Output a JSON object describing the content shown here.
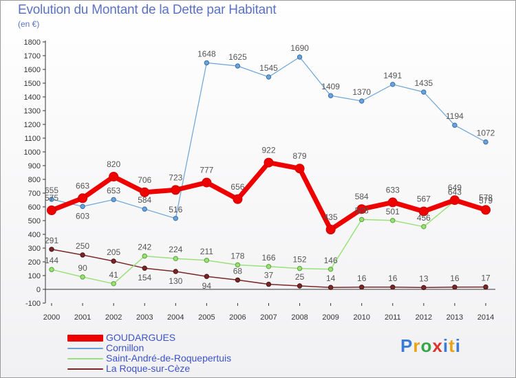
{
  "header": {
    "title": "Evolution du Montant de la Dette par Habitant",
    "unit": "(en €)"
  },
  "logo": {
    "text": "Proxiti"
  },
  "chart_data": {
    "type": "line",
    "title": "Evolution du Montant de la Dette par Habitant",
    "subtitle": "(en €)",
    "xlabel": "",
    "ylabel": "",
    "x": [
      2000,
      2001,
      2002,
      2003,
      2004,
      2005,
      2006,
      2007,
      2008,
      2009,
      2010,
      2011,
      2012,
      2013,
      2014
    ],
    "ylim": [
      -100,
      1800
    ],
    "yticks": [
      -100,
      0,
      100,
      200,
      300,
      400,
      500,
      600,
      700,
      800,
      900,
      1000,
      1100,
      1200,
      1300,
      1400,
      1500,
      1600,
      1700,
      1800
    ],
    "grid": false,
    "legend_position": "bottom-left",
    "series": [
      {
        "name": "GOUDARGUES",
        "color": "#ee0000",
        "values": [
          575,
          663,
          820,
          706,
          723,
          777,
          656,
          922,
          879,
          435,
          584,
          633,
          567,
          649,
          578
        ]
      },
      {
        "name": "Cornillon",
        "color": "#6aa3d9",
        "values": [
          655,
          603,
          653,
          584,
          516,
          1648,
          1625,
          1545,
          1690,
          1409,
          1370,
          1491,
          1435,
          1194,
          1072
        ]
      },
      {
        "name": "Saint-André-de-Roquepertuis",
        "color": "#99e07a",
        "values": [
          144,
          90,
          41,
          242,
          224,
          211,
          178,
          166,
          152,
          146,
          508,
          501,
          456,
          643,
          579
        ]
      },
      {
        "name": "La Roque-sur-Cèze",
        "color": "#7a2626",
        "values": [
          291,
          250,
          205,
          154,
          130,
          94,
          68,
          37,
          25,
          14,
          16,
          16,
          13,
          16,
          17
        ]
      }
    ]
  }
}
